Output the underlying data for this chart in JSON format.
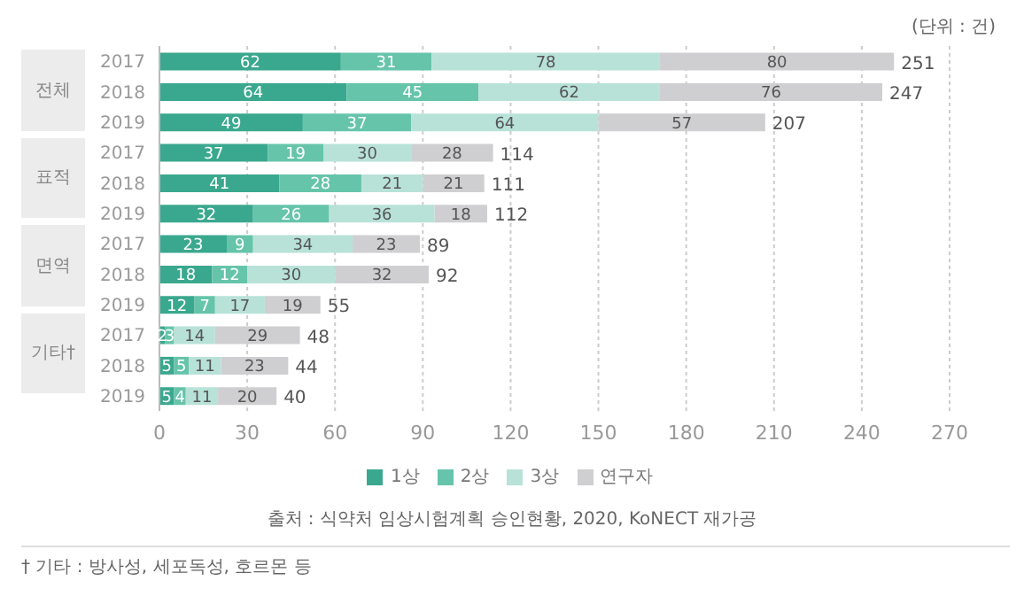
{
  "chart_data": {
    "type": "bar",
    "orientation": "horizontal",
    "stacked": true,
    "subtitle": "(단위 : 건)",
    "categories": [
      "2017",
      "2018",
      "2019",
      "2017",
      "2018",
      "2019",
      "2017",
      "2018",
      "2019",
      "2017",
      "2018",
      "2019"
    ],
    "series": [
      {
        "name": "1상",
        "color": "#3aa88e",
        "values": [
          62,
          64,
          49,
          37,
          41,
          32,
          23,
          18,
          12,
          2,
          5,
          5
        ]
      },
      {
        "name": "2상",
        "color": "#66c4aa",
        "values": [
          31,
          45,
          37,
          19,
          28,
          26,
          9,
          12,
          7,
          3,
          5,
          4
        ]
      },
      {
        "name": "3상",
        "color": "#b8e2d8",
        "values": [
          78,
          62,
          64,
          30,
          21,
          36,
          34,
          30,
          17,
          14,
          11,
          11
        ]
      },
      {
        "name": "연구자",
        "color": "#cfcfd1",
        "values": [
          80,
          76,
          57,
          28,
          21,
          18,
          23,
          32,
          19,
          29,
          23,
          20
        ]
      }
    ],
    "totals": [
      "251",
      "247",
      "207",
      "114",
      "111",
      "112",
      "89",
      "92",
      "55",
      "48",
      "44",
      "40"
    ],
    "data_labels": true,
    "xlim": [
      0,
      270
    ],
    "xticks": [
      0,
      30,
      60,
      90,
      120,
      150,
      180,
      210,
      240,
      270
    ],
    "grid": "x",
    "legend": "bottom",
    "annotations": [
      "전체",
      "표적",
      "면역",
      "기타†",
      "출처 : 식약처 임상시험계획 승인현황, 2020, KoNECT 재가공",
      "† 기타 : 방사성, 세포독성, 호르몬 등"
    ]
  }
}
